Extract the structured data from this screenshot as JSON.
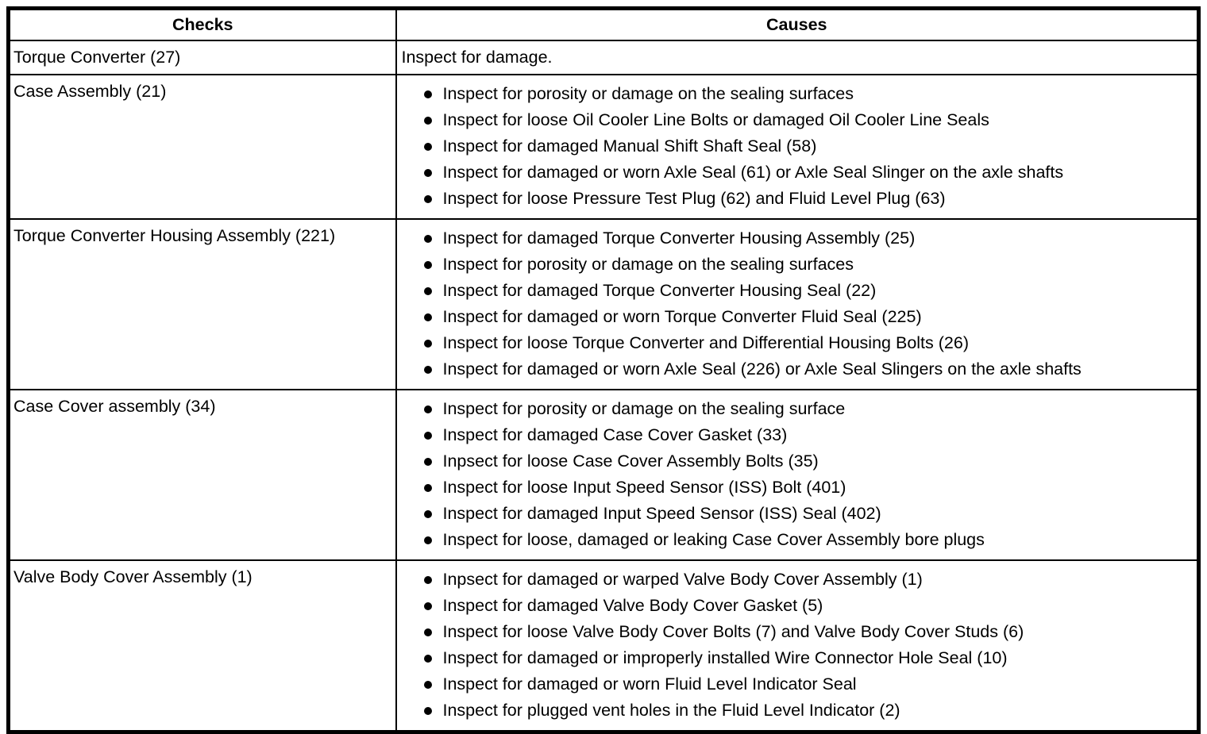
{
  "colors": {
    "border": "#000000",
    "background": "#ffffff",
    "text": "#000000"
  },
  "table": {
    "headers": {
      "checks": "Checks",
      "causes": "Causes"
    },
    "rows": [
      {
        "check": "Torque Converter (27)",
        "bulleted": false,
        "causes": [
          "Inspect for damage."
        ]
      },
      {
        "check": "Case Assembly (21)",
        "bulleted": true,
        "causes": [
          "Inspect for porosity or damage on the sealing surfaces",
          "Inspect for loose Oil Cooler Line Bolts or damaged Oil Cooler Line Seals",
          "Inspect for damaged Manual Shift Shaft Seal (58)",
          "Inspect for damaged or worn Axle Seal (61) or Axle Seal Slinger on the axle shafts",
          "Inspect for loose Pressure Test Plug (62) and Fluid Level Plug (63)"
        ]
      },
      {
        "check": "Torque Converter Housing Assembly (221)",
        "bulleted": true,
        "causes": [
          "Inspect for damaged Torque Converter Housing Assembly (25)",
          "Inspect for porosity or damage on the sealing surfaces",
          "Inspect for damaged Torque Converter Housing Seal (22)",
          "Inspect for damaged or worn Torque Converter Fluid Seal (225)",
          "Inspect for loose Torque Converter and Differential Housing Bolts (26)",
          "Inspect for damaged or worn Axle Seal (226) or Axle Seal Slingers on the axle shafts"
        ]
      },
      {
        "check": "Case Cover assembly (34)",
        "bulleted": true,
        "causes": [
          "Inspect for porosity or damage on the sealing surface",
          "Inspect for damaged Case Cover Gasket (33)",
          "Inpsect for loose Case Cover Assembly Bolts (35)",
          "Inspect for loose Input Speed Sensor (ISS) Bolt (401)",
          "Inspect for damaged Input Speed Sensor (ISS) Seal (402)",
          "Inspect for loose, damaged or leaking Case Cover Assembly bore plugs"
        ]
      },
      {
        "check": "Valve Body Cover Assembly (1)",
        "bulleted": true,
        "causes": [
          "Inpsect for damaged or warped Valve Body Cover Assembly (1)",
          "Inspect for damaged Valve Body Cover Gasket (5)",
          "Inspect for loose Valve Body Cover Bolts (7) and Valve Body Cover Studs (6)",
          "Inspect for damaged or improperly installed Wire Connector Hole Seal (10)",
          "Inspect for damaged or worn Fluid Level Indicator Seal",
          "Inspect for plugged vent holes in the Fluid Level Indicator (2)"
        ]
      }
    ]
  }
}
